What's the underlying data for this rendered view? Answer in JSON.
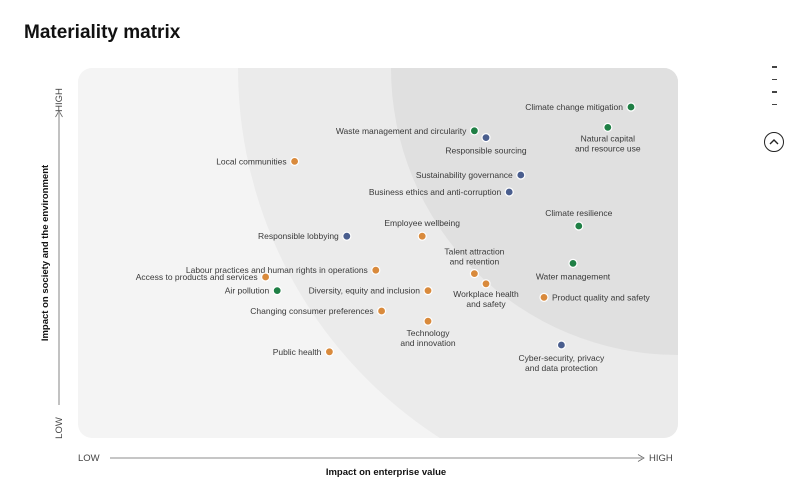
{
  "page_title": "Materiality matrix",
  "colors": {
    "green": "#1f7f45",
    "blue": "#4a5e8e",
    "orange": "#d98a3c",
    "panel": "#f4f4f4",
    "band1": "#ebebeb",
    "band2": "#e0e0e0"
  },
  "icons": {
    "side_nav": "section-nav-ticks",
    "up": "chevron-up-icon",
    "arrow": "arrow-right-icon"
  },
  "side_nav": {
    "count": 4
  },
  "chart_data": {
    "type": "scatter",
    "title": "Materiality matrix",
    "xlabel": "Impact on enterprise value",
    "ylabel": "Impact on society and the environment",
    "x_low": "LOW",
    "x_high": "HIGH",
    "y_low": "LOW",
    "y_high": "HIGH",
    "xlim": [
      0,
      100
    ],
    "ylim": [
      0,
      100
    ],
    "grid": false,
    "legend": "none",
    "points": [
      {
        "label": "Climate change mitigation",
        "x": 95,
        "y": 95,
        "color": "green"
      },
      {
        "label": "Waste management and circularity",
        "x": 68,
        "y": 88,
        "color": "green"
      },
      {
        "label": "Responsible sourcing",
        "x": 70,
        "y": 86,
        "color": "blue"
      },
      {
        "label": "Natural capital\nand resource use",
        "x": 91,
        "y": 89,
        "color": "green"
      },
      {
        "label": "Local communities",
        "x": 37,
        "y": 79,
        "color": "orange"
      },
      {
        "label": "Sustainability governance",
        "x": 76,
        "y": 75,
        "color": "blue"
      },
      {
        "label": "Business ethics and anti-corruption",
        "x": 74,
        "y": 70,
        "color": "blue"
      },
      {
        "label": "Climate resilience",
        "x": 86,
        "y": 60,
        "color": "green"
      },
      {
        "label": "Employee wellbeing",
        "x": 59,
        "y": 57,
        "color": "orange"
      },
      {
        "label": "Responsible lobbying",
        "x": 46,
        "y": 57,
        "color": "blue"
      },
      {
        "label": "Water management",
        "x": 85,
        "y": 49,
        "color": "green"
      },
      {
        "label": "Labour practices and human rights in operations",
        "x": 51,
        "y": 47,
        "color": "orange"
      },
      {
        "label": "Talent attraction\nand retention",
        "x": 68,
        "y": 46,
        "color": "orange"
      },
      {
        "label": "Access to products and services",
        "x": 32,
        "y": 45,
        "color": "orange"
      },
      {
        "label": "Workplace health\nand safety",
        "x": 70,
        "y": 43,
        "color": "orange"
      },
      {
        "label": "Air pollution",
        "x": 34,
        "y": 41,
        "color": "green"
      },
      {
        "label": "Diversity, equity and inclusion",
        "x": 60,
        "y": 41,
        "color": "orange"
      },
      {
        "label": "Product quality and safety",
        "x": 80,
        "y": 39,
        "color": "orange"
      },
      {
        "label": "Changing consumer preferences",
        "x": 52,
        "y": 35,
        "color": "orange"
      },
      {
        "label": "Technology\nand innovation",
        "x": 60,
        "y": 32,
        "color": "orange"
      },
      {
        "label": "Cyber-security, privacy\nand data protection",
        "x": 83,
        "y": 25,
        "color": "blue"
      },
      {
        "label": "Public health",
        "x": 43,
        "y": 23,
        "color": "orange"
      }
    ]
  }
}
